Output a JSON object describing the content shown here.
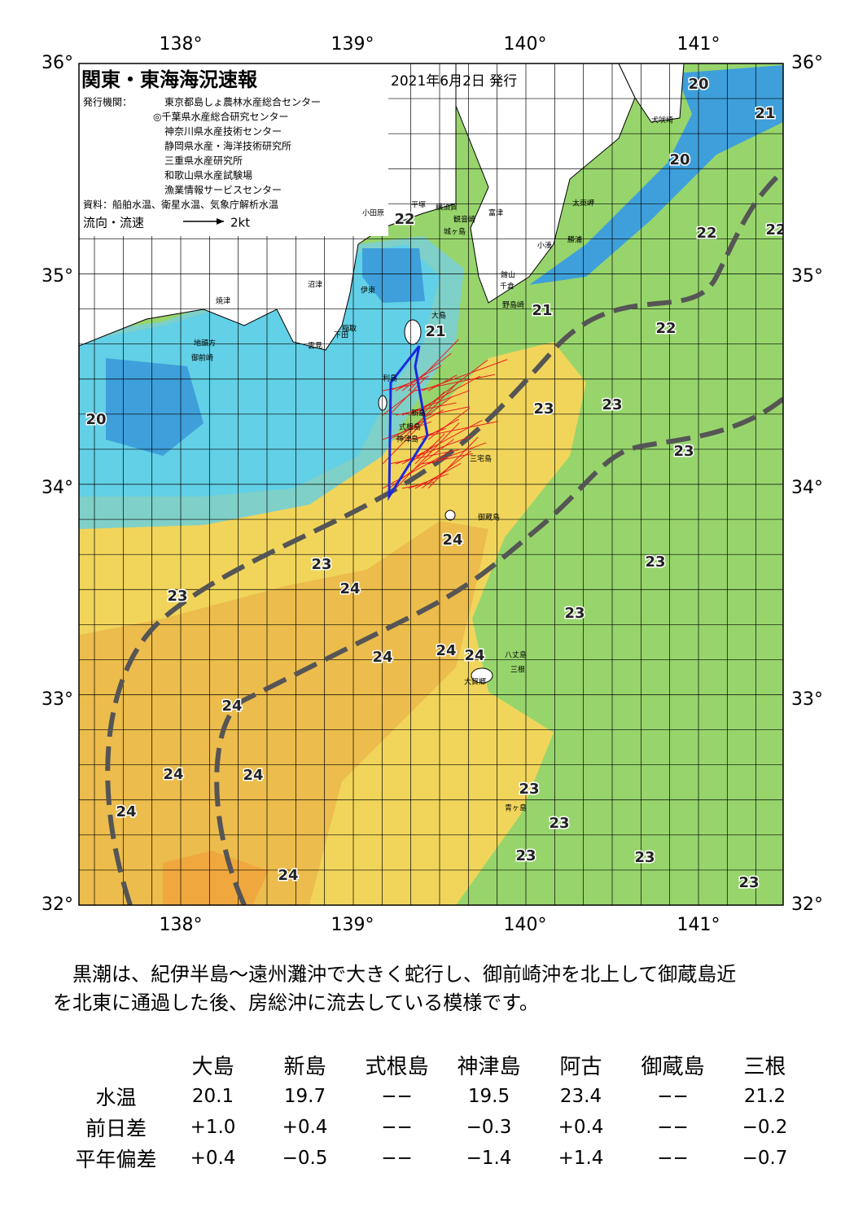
{
  "header": {
    "title": "関東・東海海況速報",
    "date": "2021年6月2日 発行",
    "issuer_label": "発行機関：",
    "issuers": [
      "東京都島しょ農林水産総合センター",
      "◎千葉県水産総合研究センター",
      "神奈川県水産技術センター",
      "静岡県水産・海洋技術研究所",
      "三重県水産研究所",
      "和歌山県水産試験場",
      "漁業情報サービスセンター"
    ],
    "source": "資料：船舶水温、衛星水温、気象庁解析水温",
    "legend": "流向・流速",
    "legend_scale": "2kt"
  },
  "map": {
    "lon_labels": [
      "138°",
      "139°",
      "140°",
      "141°"
    ],
    "lat_labels": [
      "36°",
      "35°",
      "34°",
      "33°",
      "32°"
    ],
    "temperatures": [
      "20",
      "21",
      "20",
      "22",
      "22",
      "22",
      "21",
      "21",
      "22",
      "20",
      "23",
      "23",
      "23",
      "24",
      "23",
      "23",
      "24",
      "23",
      "23",
      "24",
      "24",
      "24",
      "24",
      "24",
      "24",
      "23",
      "24",
      "23",
      "23",
      "23",
      "24",
      "23"
    ],
    "places": [
      "犬吠埼",
      "太東岬",
      "勝浦",
      "小湊",
      "富津",
      "館山",
      "千倉",
      "野島崎",
      "横須賀",
      "観音崎",
      "城ヶ島",
      "平塚",
      "小田原",
      "沼津",
      "伊東",
      "稲取",
      "下田",
      "雲見",
      "焼津",
      "地頭方",
      "御前崎",
      "大島",
      "利島",
      "新島",
      "式根島",
      "神津島",
      "三宅島",
      "御蔵島",
      "八丈島",
      "三根",
      "大賀郷",
      "青ヶ島"
    ]
  },
  "text": {
    "lines": [
      "　黒潮は、紀伊半島～遠州灘沖で大きく蛇行し、御前崎沖を北上して御蔵島近",
      "を北東に通過した後、房総沖に流去している模様です。"
    ]
  },
  "table": {
    "columns": [
      "大島",
      "新島",
      "式根島",
      "神津島",
      "阿古",
      "御蔵島",
      "三根"
    ],
    "rows": [
      {
        "label": "水温",
        "values": [
          "20.1",
          "19.7",
          "−−",
          "19.5",
          "23.4",
          "−−",
          "21.2"
        ]
      },
      {
        "label": "前日差",
        "values": [
          "+1.0",
          "+0.4",
          "−−",
          "−0.3",
          "+0.4",
          "−−",
          "−0.2"
        ]
      },
      {
        "label": "平年偏差",
        "values": [
          "+0.4",
          "−0.5",
          "−−",
          "−1.4",
          "+1.4",
          "−−",
          "−0.7"
        ]
      }
    ]
  }
}
